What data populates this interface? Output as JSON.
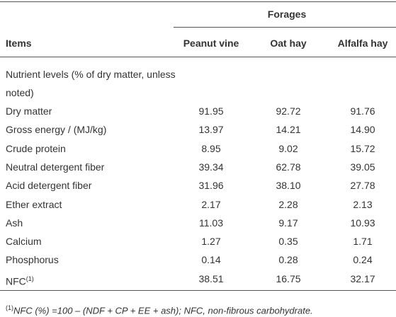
{
  "table": {
    "group_header": "Forages",
    "columns": [
      "Items",
      "Peanut vine",
      "Oat hay",
      "Alfalfa hay"
    ],
    "section": "Nutrient levels (% of dry matter, unless noted)",
    "rows": [
      {
        "label": "Dry matter",
        "values": [
          "91.95",
          "92.72",
          "91.76"
        ]
      },
      {
        "label": "Gross energy / (MJ/kg)",
        "values": [
          "13.97",
          "14.21",
          "14.90"
        ]
      },
      {
        "label": "Crude protein",
        "values": [
          "8.95",
          "9.02",
          "15.72"
        ]
      },
      {
        "label": "Neutral detergent fiber",
        "values": [
          "39.34",
          "62.78",
          "39.05"
        ]
      },
      {
        "label": "Acid detergent fiber",
        "values": [
          "31.96",
          "38.10",
          "27.78"
        ]
      },
      {
        "label": "Ether extract",
        "values": [
          "2.17",
          "2.28",
          "2.13"
        ]
      },
      {
        "label": "Ash",
        "values": [
          "11.03",
          "9.17",
          "10.93"
        ]
      },
      {
        "label": "Calcium",
        "values": [
          "1.27",
          "0.35",
          "1.71"
        ]
      },
      {
        "label": "Phosphorus",
        "values": [
          "0.14",
          "0.28",
          "0.24"
        ]
      },
      {
        "label": "NFC",
        "sup": "(1)",
        "values": [
          "38.51",
          "16.75",
          "32.17"
        ]
      }
    ],
    "footnote": {
      "marker": "(1)",
      "text": "NFC (%) =100 – (NDF + CP + EE + ash); NFC, non-fibrous carbohydrate."
    }
  }
}
